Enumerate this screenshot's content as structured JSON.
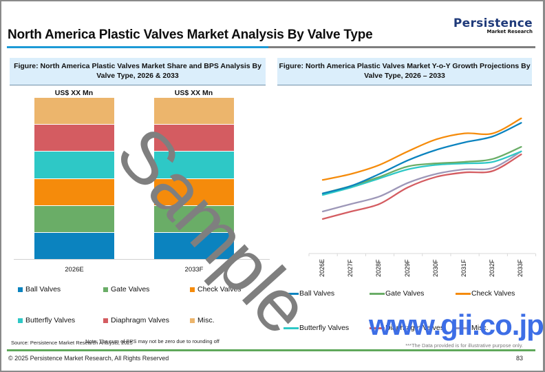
{
  "page": {
    "title": "North America Plastic Valves Market Analysis By Valve Type",
    "logo_main": "Persistence",
    "logo_sub": "Market Research",
    "source": "Source: Persistence Market Research Analysis, 2025",
    "note": "Note: The sum of BPS may not be zero due to rounding off",
    "illustrative": "***The Data provided is for illustrative purpose only.",
    "copyright": "© 2025 Persistence Market Research, All Rights Reserved",
    "page_number": "83",
    "watermark_sample": "Sample",
    "watermark_site": "www.gii.co.jp",
    "colors": {
      "title_rule": "#1c9ad6",
      "footer_rule": "#5fa85b",
      "header_bg": "#dbeefb"
    }
  },
  "left_figure": {
    "title": "Figure: North America Plastic Valves  Market Share and BPS Analysis By Valve Type, 2026 & 2033"
  },
  "right_figure": {
    "title": "Figure: North America Plastic Valves  Market Y-o-Y Growth Projections By Valve Type, 2026 – 2033"
  },
  "chart_data": [
    {
      "type": "bar",
      "stacked": true,
      "title": "Figure: North America Plastic Valves  Market Share and BPS Analysis By Valve Type, 2026 & 2033",
      "categories": [
        "2026E",
        "2033F"
      ],
      "data_labels": [
        "US$ XX Mn",
        "US$ XX Mn"
      ],
      "series": [
        {
          "name": "Ball Valves",
          "color": "#0b83bf",
          "values": [
            16.67,
            16.67
          ]
        },
        {
          "name": "Gate Valves",
          "color": "#6aad67",
          "values": [
            16.67,
            16.67
          ]
        },
        {
          "name": "Check Valves",
          "color": "#f58b0b",
          "values": [
            16.67,
            16.67
          ]
        },
        {
          "name": "Butterfly Valves",
          "color": "#2ec8c6",
          "values": [
            16.67,
            16.67
          ]
        },
        {
          "name": "Diaphragm Valves",
          "color": "#d45c61",
          "values": [
            16.67,
            16.67
          ]
        },
        {
          "name": "Misc.",
          "color": "#ecb56c",
          "values": [
            16.67,
            16.67
          ]
        }
      ],
      "xlabel": "",
      "ylabel": "",
      "ylim": [
        0,
        100
      ],
      "grid": false,
      "legend_position": "bottom"
    },
    {
      "type": "line",
      "title": "Figure: North America Plastic Valves  Market Y-o-Y Growth Projections By Valve Type, 2026 – 2033",
      "categories": [
        "2026E",
        "2027F",
        "2028F",
        "2029F",
        "2030F",
        "2031F",
        "2032F",
        "2033F"
      ],
      "series": [
        {
          "name": "Ball Valves",
          "color": "#0b83bf",
          "values": [
            40,
            45,
            53,
            62,
            69,
            74,
            78,
            87
          ]
        },
        {
          "name": "Gate Valves",
          "color": "#6aad67",
          "values": [
            40,
            45,
            51,
            58,
            60,
            61,
            63,
            71
          ]
        },
        {
          "name": "Check Valves",
          "color": "#f58b0b",
          "values": [
            49,
            53,
            59,
            68,
            76,
            80,
            80,
            90
          ]
        },
        {
          "name": "Butterfly Valves",
          "color": "#2ec8c6",
          "values": [
            39,
            44,
            50,
            56,
            59,
            60,
            61,
            68
          ]
        },
        {
          "name": "Diaphragm Valves",
          "color": "#d45c61",
          "values": [
            23,
            28,
            33,
            44,
            51,
            54,
            55,
            66
          ]
        },
        {
          "name": "Misc.",
          "color": "#9d97b8",
          "values": [
            28,
            33,
            38,
            47,
            53,
            56,
            57,
            68
          ]
        }
      ],
      "xlabel": "",
      "ylabel": "",
      "ylim": [
        0,
        100
      ],
      "grid": false,
      "legend_position": "bottom",
      "y_axis_visible": false
    }
  ]
}
